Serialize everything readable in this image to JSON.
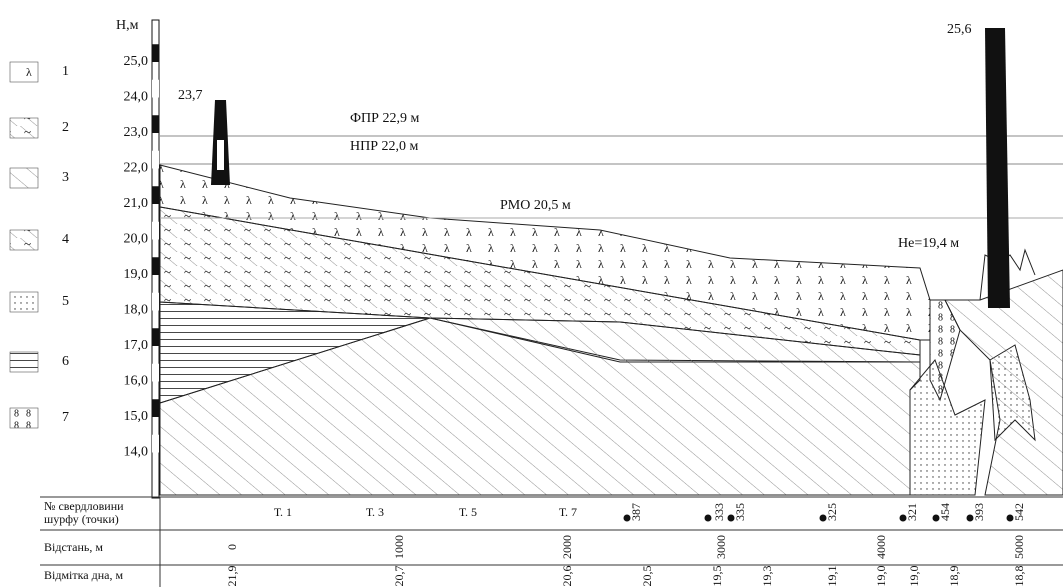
{
  "axis": {
    "label": "Н,м",
    "ticks": [
      "25,0",
      "24,0",
      "23,0",
      "22,0",
      "21,0",
      "20,0",
      "19,0",
      "18,0",
      "17,0",
      "16,0",
      "15,0",
      "14,0"
    ]
  },
  "annotations": {
    "left_well": "23,7",
    "fpr": "ФПР 22,9 м",
    "npr": "НПР 22,0 м",
    "rmo": "РМО 20,5 м",
    "he": "Не=19,4 м",
    "right_well": "25,6"
  },
  "legend": [
    "1",
    "2",
    "3",
    "4",
    "5",
    "6",
    "7"
  ],
  "table": {
    "rows": [
      {
        "label": [
          "№ свердловини",
          "шурфу (точки)"
        ],
        "points": [
          "Т. 1",
          "Т. 3",
          "Т. 5",
          "Т. 7"
        ],
        "wells": [
          "387",
          "333",
          "335",
          "325",
          "321",
          "454",
          "393",
          "542"
        ]
      },
      {
        "label": [
          "Відстань, м"
        ],
        "values": [
          "0",
          "1000",
          "2000",
          "3000",
          "4000",
          "5000"
        ]
      },
      {
        "label": [
          "Відмітка дна, м"
        ],
        "values": [
          "21,9",
          "20,7",
          "20,6",
          "20,5",
          "19,5",
          "19,3",
          "19,1",
          "19,0",
          "19,0",
          "18,9",
          "18,8"
        ]
      }
    ]
  }
}
